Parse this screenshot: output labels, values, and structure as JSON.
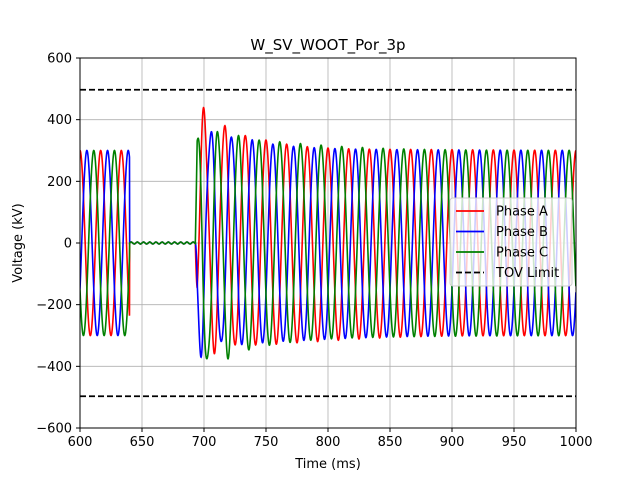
{
  "chart_data": {
    "type": "line",
    "title": "W_SV_WOOT_Por_3p",
    "xlabel": "Time (ms)",
    "ylabel": "Voltage (kV)",
    "xlim": [
      600,
      1000
    ],
    "ylim": [
      -600,
      600
    ],
    "xticks": [
      600,
      650,
      700,
      750,
      800,
      850,
      900,
      950,
      1000
    ],
    "yticks": [
      -600,
      -400,
      -200,
      0,
      200,
      400,
      600
    ],
    "xtick_labels": [
      "600",
      "650",
      "700",
      "750",
      "800",
      "850",
      "900",
      "950",
      "1000"
    ],
    "ytick_labels": [
      "−600",
      "−400",
      "−200",
      "0",
      "200",
      "400",
      "600"
    ],
    "grid": true,
    "legend_position": "center-right",
    "fault_start_ms": 640,
    "fault_clear_ms": 693,
    "steady_amplitude_kv": 300,
    "frequency_hz": 60,
    "series": [
      {
        "name": "Phase A",
        "color": "#ff0000",
        "phase_deg": 90,
        "peak_kv": 405,
        "trough_kv": -330
      },
      {
        "name": "Phase B",
        "color": "#0000ff",
        "phase_deg": -30,
        "peak_kv": 370,
        "trough_kv": -330
      },
      {
        "name": "Phase C",
        "color": "#008000",
        "phase_deg": 210,
        "peak_kv": 355,
        "trough_kv": -390
      },
      {
        "name": "TOV Limit",
        "color": "#000000",
        "dashed": true,
        "values_kv": [
          497,
          -497
        ]
      }
    ]
  }
}
